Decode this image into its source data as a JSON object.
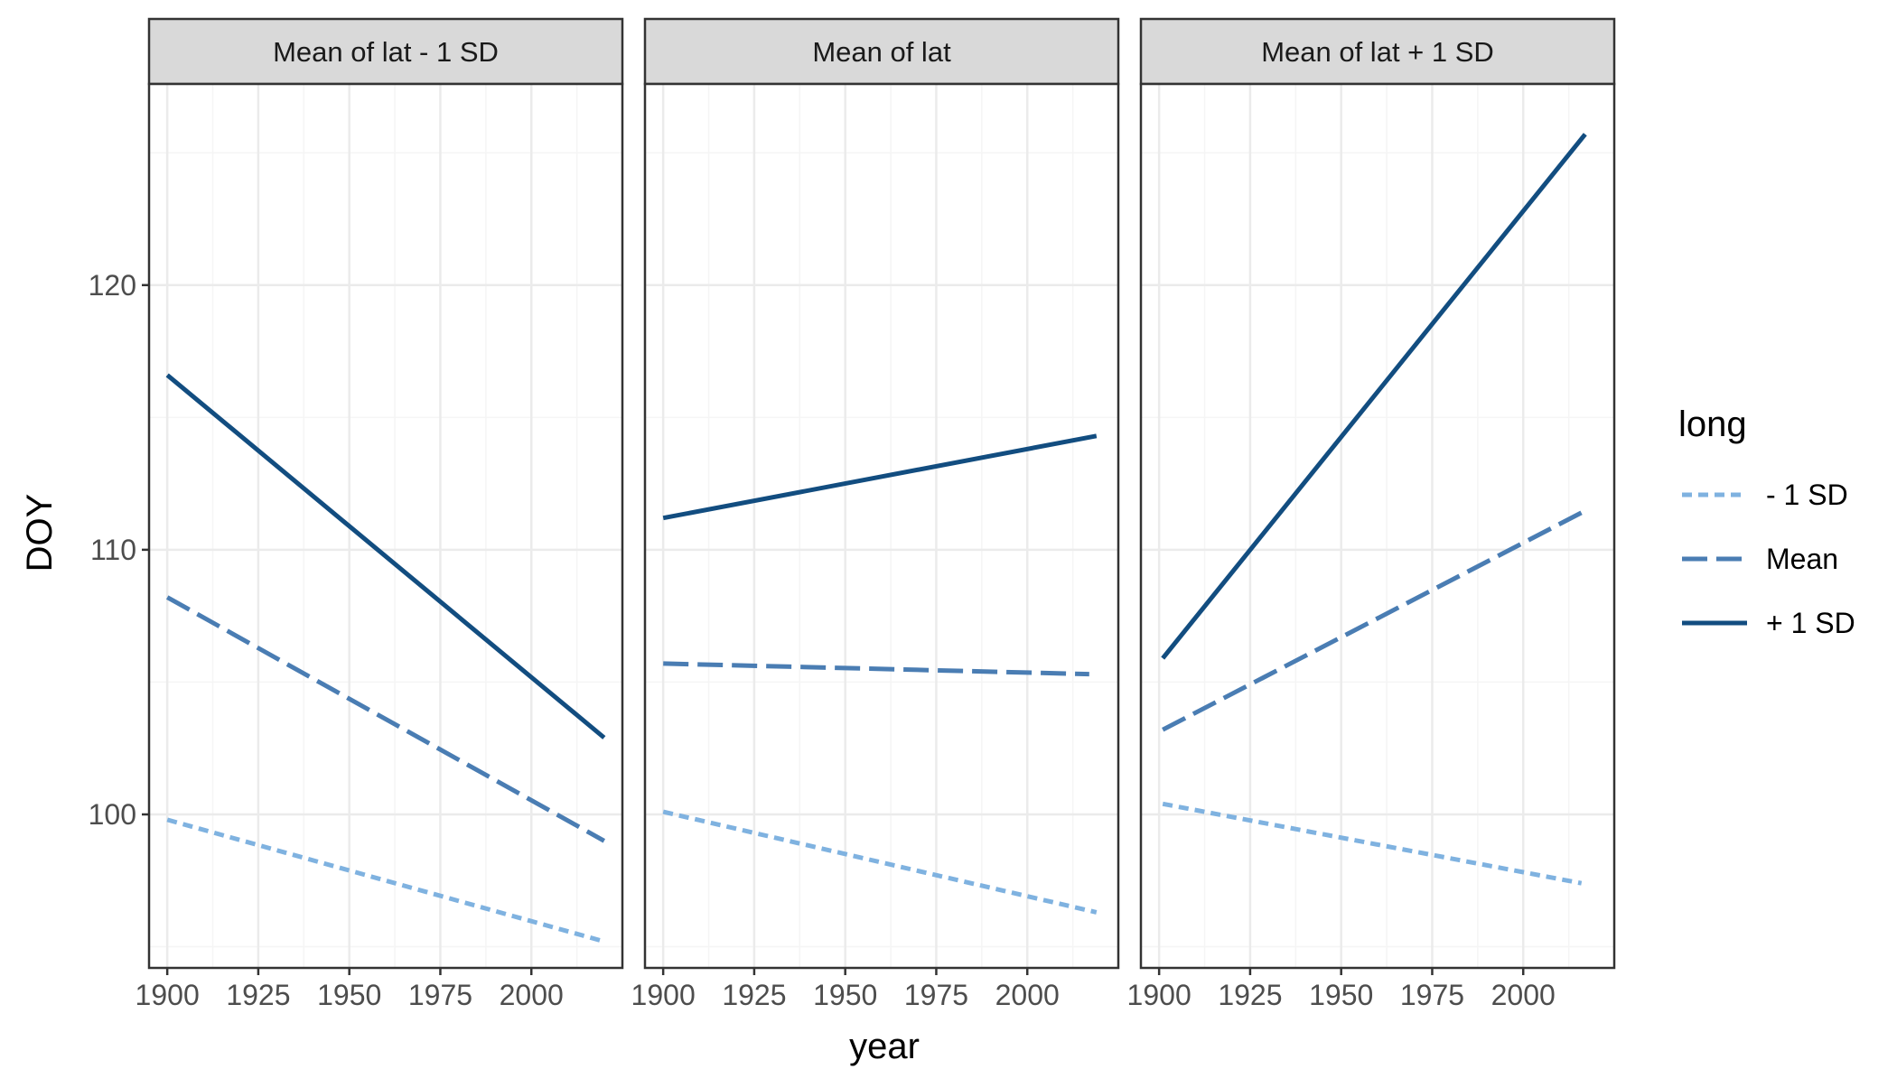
{
  "chart_data": {
    "type": "line",
    "xlabel": "year",
    "ylabel": "DOY",
    "xlim": [
      1895,
      2025
    ],
    "ylim": [
      94.2,
      127.6
    ],
    "x_ticks": [
      1900,
      1925,
      1950,
      1975,
      2000
    ],
    "y_ticks": [
      100,
      110,
      120
    ],
    "panels": [
      {
        "title": "Mean of lat - 1 SD",
        "series": [
          {
            "name": "- 1 SD",
            "x": [
              1900,
              2020
            ],
            "y": [
              99.8,
              95.2
            ]
          },
          {
            "name": "Mean",
            "x": [
              1900,
              2020
            ],
            "y": [
              108.2,
              99.0
            ]
          },
          {
            "name": "+ 1 SD",
            "x": [
              1900,
              2020
            ],
            "y": [
              116.6,
              102.9
            ]
          }
        ]
      },
      {
        "title": "Mean of lat",
        "series": [
          {
            "name": "- 1 SD",
            "x": [
              1900,
              2019
            ],
            "y": [
              100.1,
              96.3
            ]
          },
          {
            "name": "Mean",
            "x": [
              1900,
              2017
            ],
            "y": [
              105.7,
              105.3
            ]
          },
          {
            "name": "+ 1 SD",
            "x": [
              1900,
              2019
            ],
            "y": [
              111.2,
              114.3
            ]
          }
        ]
      },
      {
        "title": "Mean of lat + 1 SD",
        "series": [
          {
            "name": "- 1 SD",
            "x": [
              1901,
              2016
            ],
            "y": [
              100.4,
              97.4
            ]
          },
          {
            "name": "Mean",
            "x": [
              1901,
              2016
            ],
            "y": [
              103.2,
              111.4
            ]
          },
          {
            "name": "+ 1 SD",
            "x": [
              1901,
              2017
            ],
            "y": [
              105.9,
              125.7
            ]
          }
        ]
      }
    ],
    "legend": {
      "title": "long",
      "position": "right",
      "entries": [
        {
          "name": "- 1 SD",
          "color": "#7fb2e0",
          "dash": "dotted"
        },
        {
          "name": "Mean",
          "color": "#4a7db3",
          "dash": "dashed"
        },
        {
          "name": "+ 1 SD",
          "color": "#124d80",
          "dash": "solid"
        }
      ]
    },
    "grid": true,
    "colors": {
      "panel_background": "#ffffff",
      "panel_border": "#333333",
      "strip_background": "#d9d9d9",
      "grid_major": "#ebebeb",
      "grid_minor": "#f5f5f5"
    }
  }
}
